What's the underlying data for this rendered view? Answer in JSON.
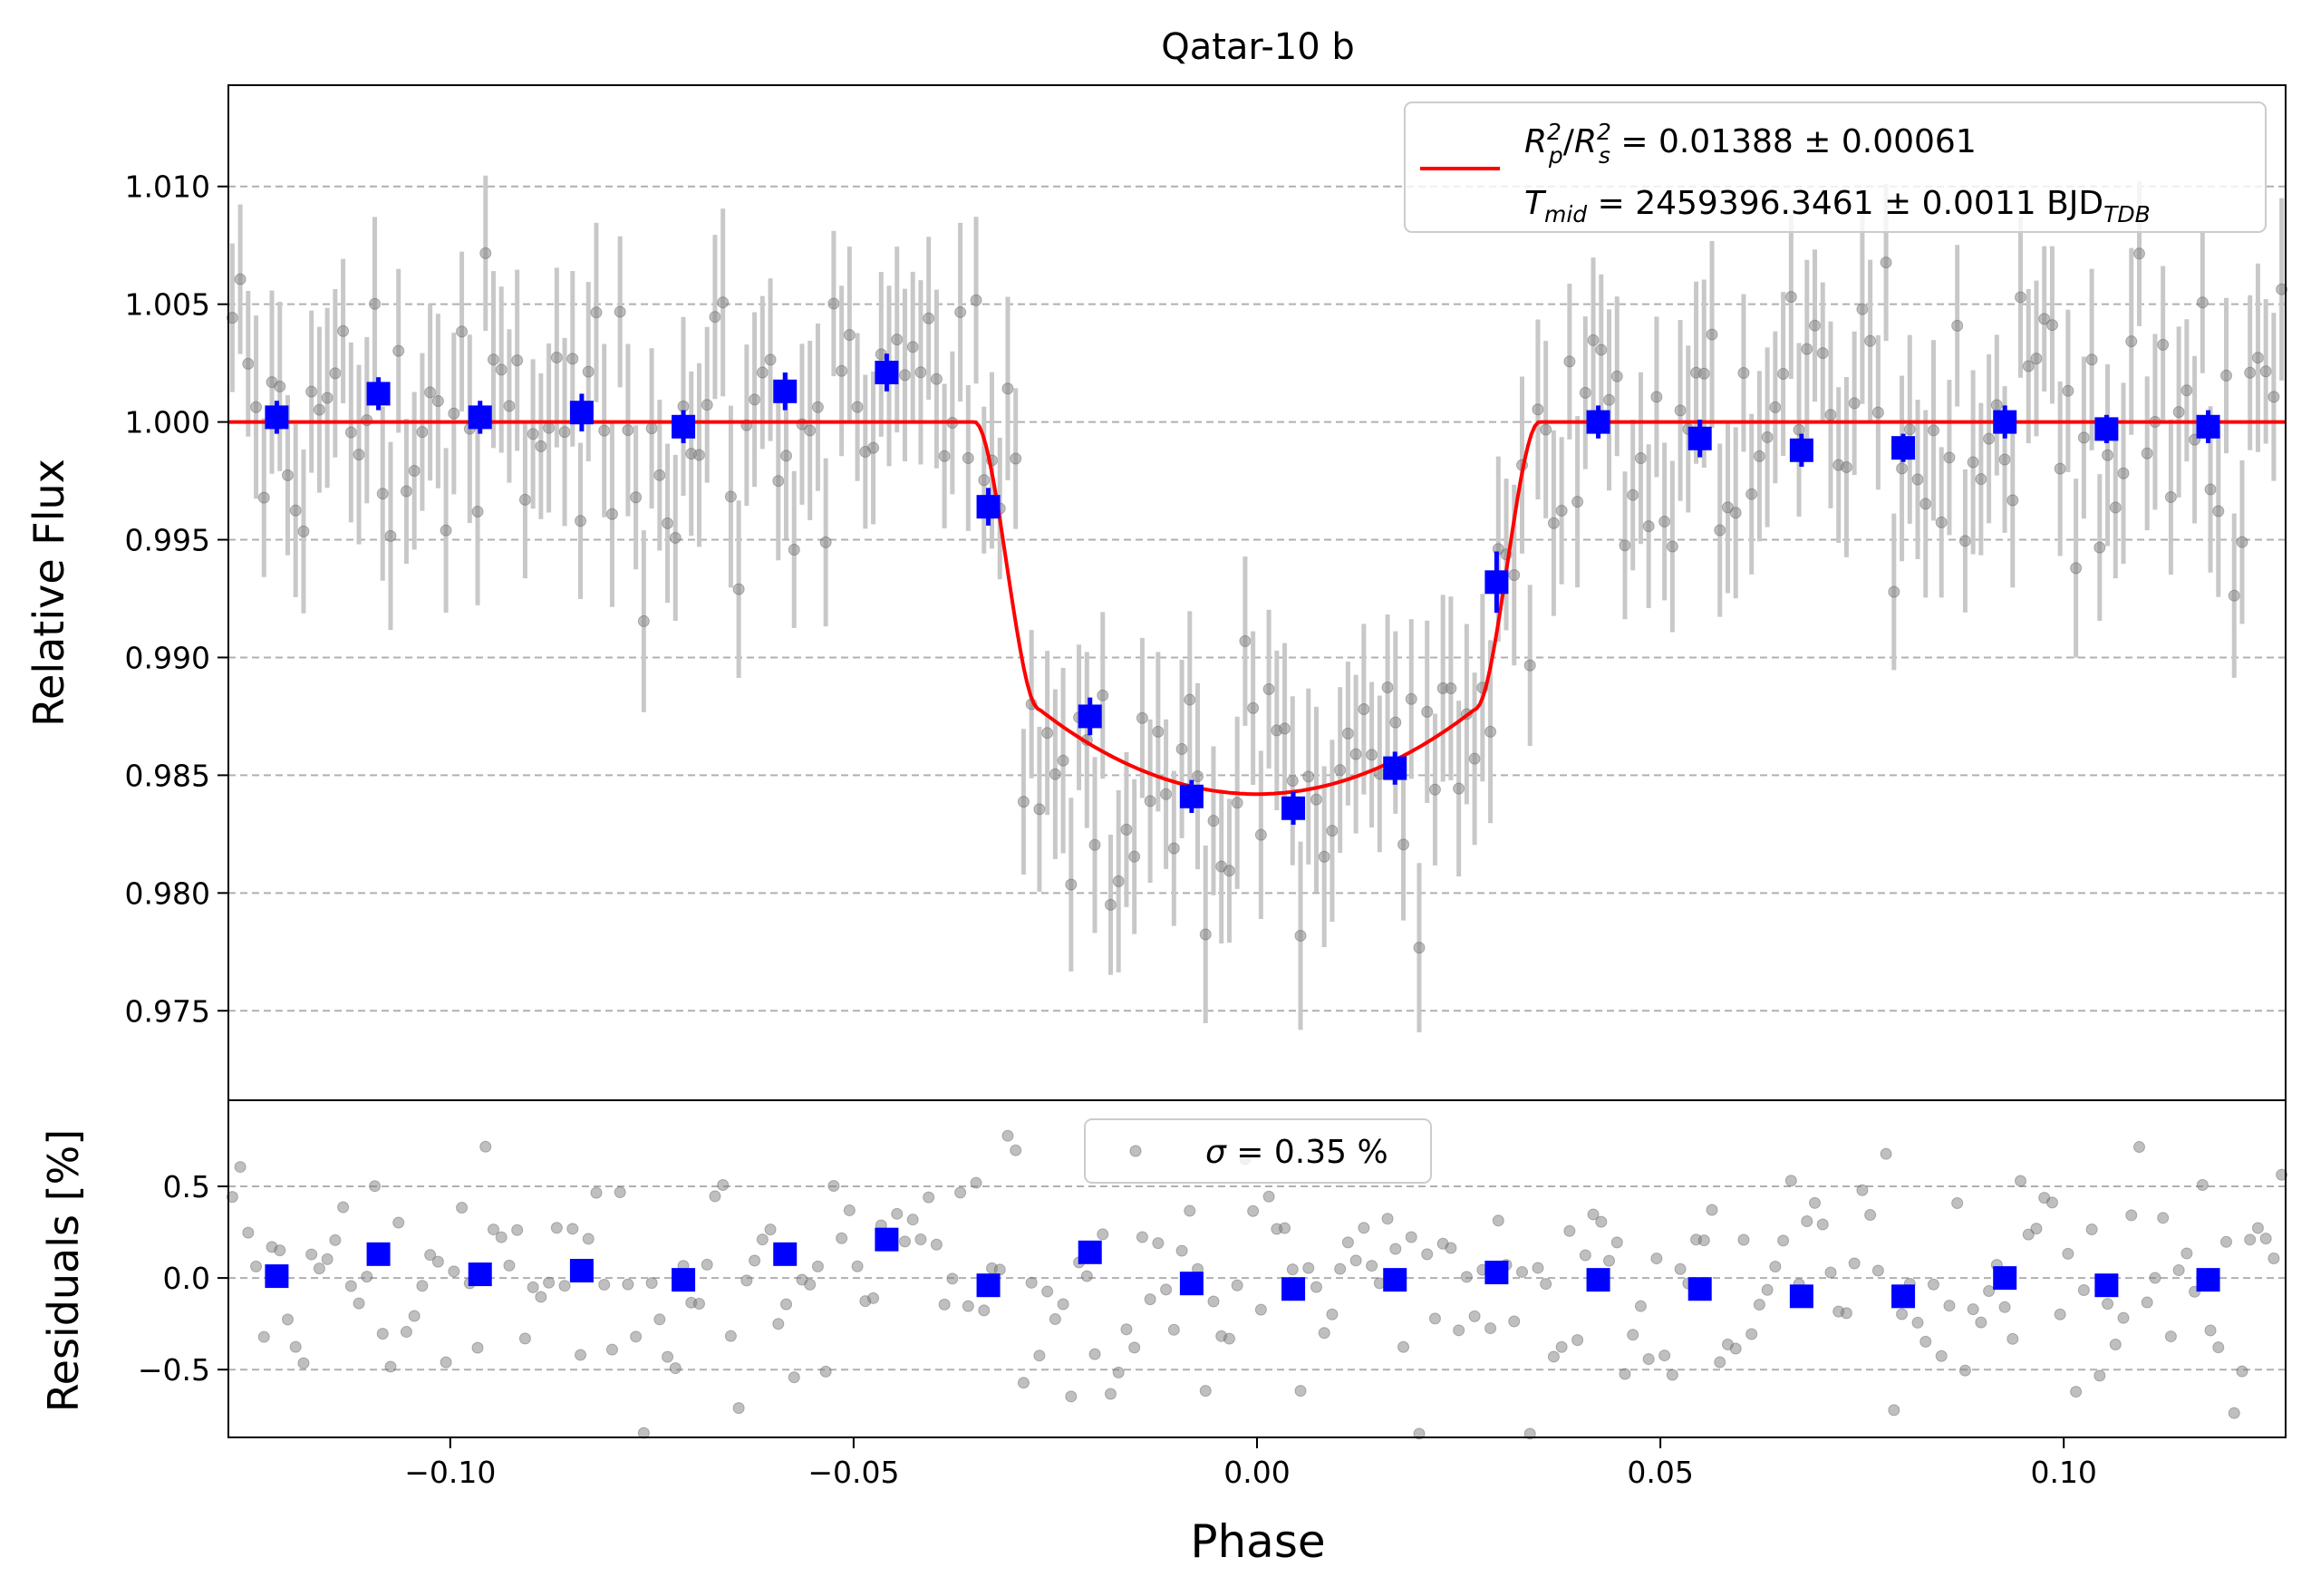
{
  "chart_data": [
    {
      "type": "scatter",
      "panel": "light curve",
      "title": "Qatar-10 b",
      "xlabel": "",
      "ylabel": "Relative Flux",
      "xlim": [
        -0.1275,
        0.1275
      ],
      "ylim": [
        0.9712,
        1.0143
      ],
      "y_ticks": [
        0.975,
        0.98,
        0.985,
        0.99,
        0.995,
        1.0,
        1.005,
        1.01
      ],
      "y_tick_labels": [
        "0.975",
        "0.980",
        "0.985",
        "0.990",
        "0.995",
        "1.000",
        "1.005",
        "1.010"
      ],
      "grid": "horizontal dashed",
      "legend_position": "top-right",
      "legend": {
        "line1_lhs_a": "R",
        "line1_lhs_a_sup": "2",
        "line1_lhs_a_sub": "p",
        "line1_lhs_b": "R",
        "line1_lhs_b_sup": "2",
        "line1_lhs_b_sub": "s",
        "line1_rhs": " = 0.01388 ± 0.00061",
        "line2_lhs": "T",
        "line2_lhs_sub": "mid",
        "line2_rhs": " = 2459396.3461 ± 0.0011 BJD",
        "line2_unit_sub": "TDB"
      },
      "colors": {
        "raw": "#808080",
        "errorbar": "#c8c8c8",
        "binned": "#0000ff",
        "model": "#ff0000"
      },
      "model": {
        "type": "transit",
        "depth": 0.01388,
        "t1": -0.035,
        "t2": -0.027,
        "t3": 0.027,
        "t4": 0.035,
        "center_flux": 0.9842,
        "contact_flux": 0.9878
      },
      "binned": {
        "x": [
          -0.1215,
          -0.1089,
          -0.0963,
          -0.0837,
          -0.0711,
          -0.0585,
          -0.0459,
          -0.0333,
          -0.0207,
          -0.0081,
          0.0045,
          0.0171,
          0.0297,
          0.0423,
          0.0549,
          0.0675,
          0.0801,
          0.0927,
          0.1053,
          0.1179
        ],
        "y": [
          1.0002,
          1.0012,
          1.0002,
          1.0004,
          0.9998,
          1.0013,
          1.0021,
          0.9964,
          0.9875,
          0.9841,
          0.9836,
          0.9853,
          0.9932,
          1.0,
          0.9993,
          0.9988,
          0.9989,
          1.0,
          0.9997,
          0.9998
        ],
        "yerr": [
          0.0007,
          0.0007,
          0.0007,
          0.0008,
          0.0007,
          0.0008,
          0.0008,
          0.0008,
          0.0008,
          0.0007,
          0.0007,
          0.0007,
          0.0013,
          0.0007,
          0.0008,
          0.0007,
          0.0006,
          0.0007,
          0.0006,
          0.0007
        ]
      },
      "raw_count": 260,
      "raw_scatter_sigma_percent": 0.35,
      "raw_errorbar_half_height": 0.0035
    },
    {
      "type": "scatter",
      "panel": "residuals",
      "xlabel": "Phase",
      "ylabel": "Residuals [%]",
      "xlim": [
        -0.1275,
        0.1275
      ],
      "ylim": [
        -0.87,
        0.97
      ],
      "x_ticks": [
        -0.1,
        -0.05,
        0.0,
        0.05,
        0.1
      ],
      "x_tick_labels": [
        "−0.10",
        "−0.05",
        "0.00",
        "0.05",
        "0.10"
      ],
      "y_ticks": [
        -0.5,
        0.0,
        0.5
      ],
      "y_tick_labels": [
        "−0.5",
        "0.0",
        "0.5"
      ],
      "grid": "horizontal dashed",
      "legend_position": "top-center",
      "legend": {
        "sigma_symbol": "σ",
        "sigma_text": " = 0.35 %"
      },
      "binned": {
        "x": [
          -0.1215,
          -0.1089,
          -0.0963,
          -0.0837,
          -0.0711,
          -0.0585,
          -0.0459,
          -0.0333,
          -0.0207,
          -0.0081,
          0.0045,
          0.0171,
          0.0297,
          0.0423,
          0.0549,
          0.0675,
          0.0801,
          0.0927,
          0.1053,
          0.1179
        ],
        "y": [
          0.01,
          0.13,
          0.02,
          0.04,
          -0.01,
          0.13,
          0.21,
          -0.04,
          0.14,
          -0.03,
          -0.06,
          -0.01,
          0.03,
          -0.01,
          -0.06,
          -0.1,
          -0.1,
          0.0,
          -0.04,
          -0.01
        ]
      }
    }
  ]
}
